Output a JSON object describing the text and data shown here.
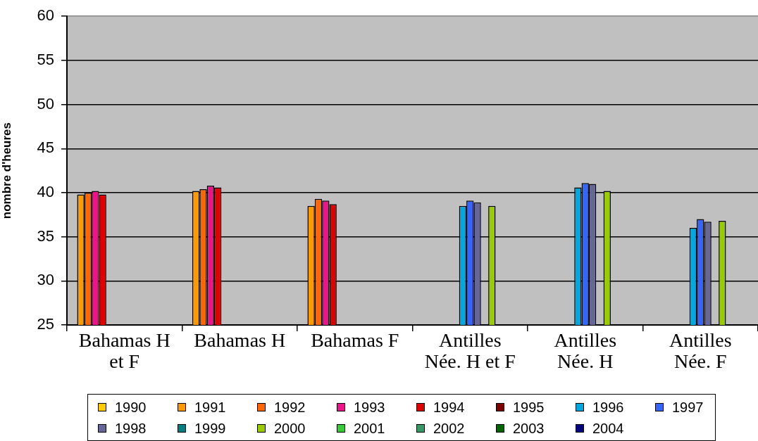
{
  "chart_data": {
    "type": "bar",
    "ylabel": "nombre d'heures",
    "categories": [
      "Bahamas H et F",
      "Bahamas H",
      "Bahamas F",
      "Antilles Née. H et F",
      "Antilles Née. H",
      "Antilles Née. F"
    ],
    "series": [
      {
        "name": "1990",
        "color": "#ffcc00",
        "values": [
          null,
          null,
          null,
          null,
          null,
          null
        ]
      },
      {
        "name": "1991",
        "color": "#ff9900",
        "values": [
          39.8,
          40.2,
          38.5,
          null,
          null,
          null
        ]
      },
      {
        "name": "1992",
        "color": "#ff6600",
        "values": [
          40.0,
          40.4,
          39.3,
          null,
          null,
          null
        ]
      },
      {
        "name": "1993",
        "color": "#f0128c",
        "values": [
          40.2,
          40.8,
          39.1,
          null,
          null,
          null
        ]
      },
      {
        "name": "1994",
        "color": "#e00000",
        "values": [
          39.8,
          40.6,
          38.7,
          null,
          null,
          null
        ]
      },
      {
        "name": "1995",
        "color": "#800000",
        "values": [
          null,
          null,
          null,
          null,
          null,
          null
        ]
      },
      {
        "name": "1996",
        "color": "#00a8e0",
        "values": [
          null,
          null,
          null,
          38.5,
          40.6,
          36.0
        ]
      },
      {
        "name": "1997",
        "color": "#3366ff",
        "values": [
          null,
          null,
          null,
          39.1,
          41.1,
          37.0
        ]
      },
      {
        "name": "1998",
        "color": "#666699",
        "values": [
          null,
          null,
          null,
          38.9,
          41.0,
          36.7
        ]
      },
      {
        "name": "1999",
        "color": "#008080",
        "values": [
          null,
          null,
          null,
          null,
          null,
          null
        ]
      },
      {
        "name": "2000",
        "color": "#99cc00",
        "values": [
          null,
          null,
          null,
          38.5,
          40.2,
          36.8
        ]
      },
      {
        "name": "2001",
        "color": "#33cc33",
        "values": [
          null,
          null,
          null,
          null,
          null,
          null
        ]
      },
      {
        "name": "2002",
        "color": "#339966",
        "values": [
          null,
          null,
          null,
          null,
          null,
          null
        ]
      },
      {
        "name": "2003",
        "color": "#006600",
        "values": [
          null,
          null,
          null,
          null,
          null,
          null
        ]
      },
      {
        "name": "2004",
        "color": "#000080",
        "values": [
          null,
          null,
          null,
          null,
          null,
          null
        ]
      }
    ],
    "ylim": [
      25,
      60
    ],
    "yticks": [
      25,
      30,
      35,
      40,
      45,
      50,
      55,
      60
    ],
    "grid": "y",
    "legend": "bottom"
  }
}
